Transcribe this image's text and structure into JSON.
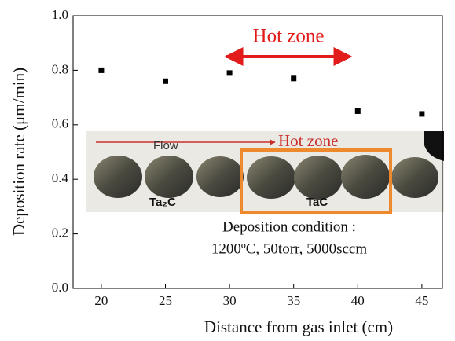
{
  "chart_data": {
    "type": "scatter",
    "x": [
      20,
      25,
      30,
      35,
      40,
      45
    ],
    "values": [
      0.8,
      0.76,
      0.79,
      0.77,
      0.65,
      0.64
    ],
    "color": "#000000",
    "xlim": [
      17.8,
      46.6
    ],
    "ylim": [
      0,
      1
    ],
    "xticks": [
      20,
      25,
      30,
      35,
      40,
      45
    ],
    "yticks": [
      {
        "value": 0,
        "label": "0.0"
      },
      0.2,
      0.4,
      0.6,
      0.8,
      {
        "value": 1,
        "label": "1.0"
      }
    ],
    "xlabel": "Distance from gas inlet (cm)",
    "ylabel": "Deposition rate (μm/min)",
    "annotations": {
      "hot_zone": "Hot zone",
      "inset_flow": "Flow",
      "inset_hot_zone": "Hot zone",
      "inset_ta2c": "Ta₂C",
      "inset_tac": "TaC",
      "condition_line1": "Deposition condition :",
      "condition_line2": "1200ºC, 50torr, 5000sccm"
    }
  }
}
